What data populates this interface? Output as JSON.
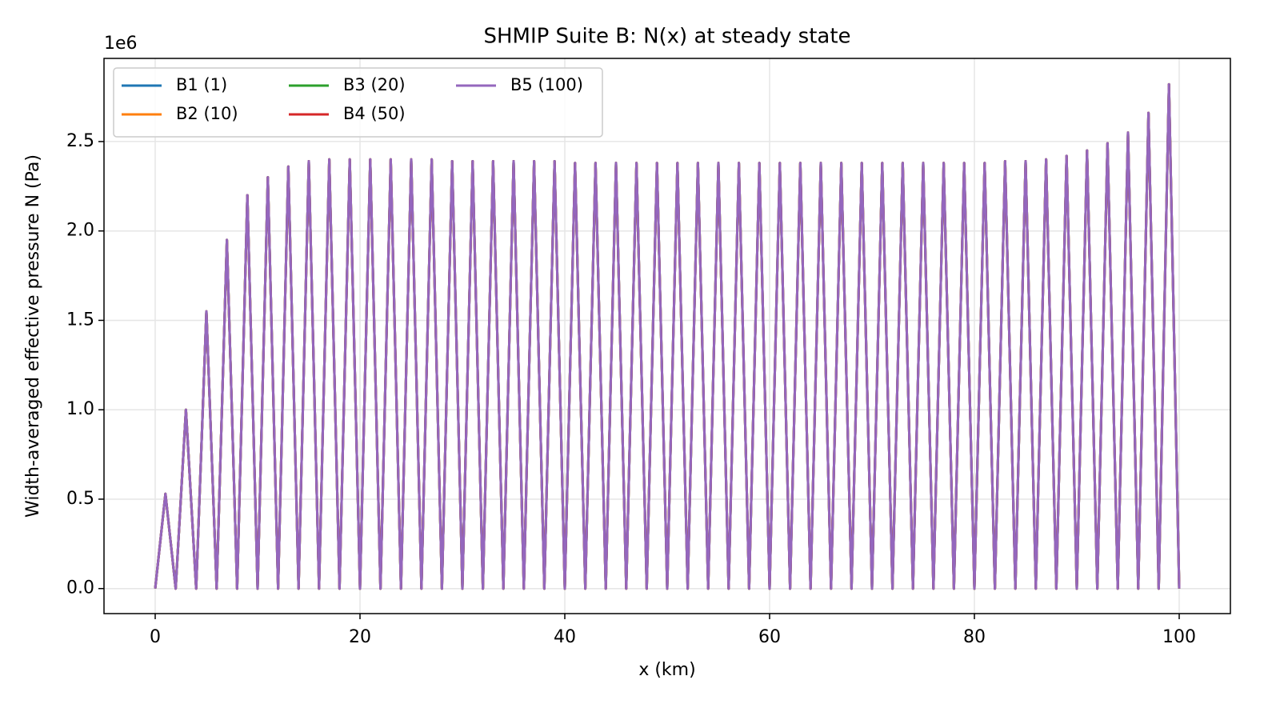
{
  "chart_data": {
    "type": "line",
    "title": "SHMIP Suite B: N(x) at steady state",
    "xlabel": "x (km)",
    "ylabel": "Width-averaged effective pressure N (Pa)",
    "y_offset_label": "1e6",
    "x": [
      0,
      1,
      2,
      3,
      4,
      5,
      6,
      7,
      8,
      9,
      10,
      11,
      12,
      13,
      14,
      15,
      16,
      17,
      18,
      19,
      20,
      21,
      22,
      23,
      24,
      25,
      26,
      27,
      28,
      29,
      30,
      31,
      32,
      33,
      34,
      35,
      36,
      37,
      38,
      39,
      40,
      41,
      42,
      43,
      44,
      45,
      46,
      47,
      48,
      49,
      50,
      51,
      52,
      53,
      54,
      55,
      56,
      57,
      58,
      59,
      60,
      61,
      62,
      63,
      64,
      65,
      66,
      67,
      68,
      69,
      70,
      71,
      72,
      73,
      74,
      75,
      76,
      77,
      78,
      79,
      80,
      81,
      82,
      83,
      84,
      85,
      86,
      87,
      88,
      89,
      90,
      91,
      92,
      93,
      94,
      95,
      96,
      97,
      98,
      99,
      100
    ],
    "series": [
      {
        "name": "B1 (1)",
        "color": "#1f77b4",
        "values": [
          0,
          0.53,
          0,
          1,
          0,
          1.55,
          0,
          1.95,
          0,
          2.2,
          0,
          2.3,
          0,
          2.36,
          0,
          2.39,
          0,
          2.4,
          0,
          2.4,
          0,
          2.4,
          0,
          2.4,
          0,
          2.4,
          0,
          2.4,
          0,
          2.39,
          0,
          2.39,
          0,
          2.39,
          0,
          2.39,
          0,
          2.39,
          0,
          2.39,
          0,
          2.38,
          0,
          2.38,
          0,
          2.38,
          0,
          2.38,
          0,
          2.38,
          0,
          2.38,
          0,
          2.38,
          0,
          2.38,
          0,
          2.38,
          0,
          2.38,
          0,
          2.38,
          0,
          2.38,
          0,
          2.38,
          0,
          2.38,
          0,
          2.38,
          0,
          2.38,
          0,
          2.38,
          0,
          2.38,
          0,
          2.38,
          0,
          2.38,
          0,
          2.38,
          0,
          2.39,
          0,
          2.39,
          0,
          2.4,
          0,
          2.42,
          0,
          2.45,
          0,
          2.49,
          0,
          2.55,
          0,
          2.66,
          0,
          2.82,
          0
        ]
      },
      {
        "name": "B2 (10)",
        "color": "#ff7f0e",
        "values": [
          0,
          0.53,
          0,
          1,
          0,
          1.55,
          0,
          1.95,
          0,
          2.2,
          0,
          2.3,
          0,
          2.36,
          0,
          2.39,
          0,
          2.4,
          0,
          2.4,
          0,
          2.4,
          0,
          2.4,
          0,
          2.4,
          0,
          2.4,
          0,
          2.39,
          0,
          2.39,
          0,
          2.39,
          0,
          2.39,
          0,
          2.39,
          0,
          2.39,
          0,
          2.38,
          0,
          2.38,
          0,
          2.38,
          0,
          2.38,
          0,
          2.38,
          0,
          2.38,
          0,
          2.38,
          0,
          2.38,
          0,
          2.38,
          0,
          2.38,
          0,
          2.38,
          0,
          2.38,
          0,
          2.38,
          0,
          2.38,
          0,
          2.38,
          0,
          2.38,
          0,
          2.38,
          0,
          2.38,
          0,
          2.38,
          0,
          2.38,
          0,
          2.38,
          0,
          2.39,
          0,
          2.39,
          0,
          2.4,
          0,
          2.42,
          0,
          2.45,
          0,
          2.49,
          0,
          2.55,
          0,
          2.66,
          0,
          2.82,
          0
        ]
      },
      {
        "name": "B3 (20)",
        "color": "#2ca02c",
        "values": [
          0,
          0.53,
          0,
          1,
          0,
          1.55,
          0,
          1.95,
          0,
          2.2,
          0,
          2.3,
          0,
          2.36,
          0,
          2.39,
          0,
          2.4,
          0,
          2.4,
          0,
          2.4,
          0,
          2.4,
          0,
          2.4,
          0,
          2.4,
          0,
          2.39,
          0,
          2.39,
          0,
          2.39,
          0,
          2.39,
          0,
          2.39,
          0,
          2.39,
          0,
          2.38,
          0,
          2.38,
          0,
          2.38,
          0,
          2.38,
          0,
          2.38,
          0,
          2.38,
          0,
          2.38,
          0,
          2.38,
          0,
          2.38,
          0,
          2.38,
          0,
          2.38,
          0,
          2.38,
          0,
          2.38,
          0,
          2.38,
          0,
          2.38,
          0,
          2.38,
          0,
          2.38,
          0,
          2.38,
          0,
          2.38,
          0,
          2.38,
          0,
          2.38,
          0,
          2.39,
          0,
          2.39,
          0,
          2.4,
          0,
          2.42,
          0,
          2.45,
          0,
          2.49,
          0,
          2.55,
          0,
          2.66,
          0,
          2.82,
          0
        ]
      },
      {
        "name": "B4 (50)",
        "color": "#d62728",
        "values": [
          0,
          0.53,
          0,
          1,
          0,
          1.55,
          0,
          1.95,
          0,
          2.2,
          0,
          2.3,
          0,
          2.36,
          0,
          2.39,
          0,
          2.4,
          0,
          2.4,
          0,
          2.4,
          0,
          2.4,
          0,
          2.4,
          0,
          2.4,
          0,
          2.39,
          0,
          2.39,
          0,
          2.39,
          0,
          2.39,
          0,
          2.39,
          0,
          2.39,
          0,
          2.38,
          0,
          2.38,
          0,
          2.38,
          0,
          2.38,
          0,
          2.38,
          0,
          2.38,
          0,
          2.38,
          0,
          2.38,
          0,
          2.38,
          0,
          2.38,
          0,
          2.38,
          0,
          2.38,
          0,
          2.38,
          0,
          2.38,
          0,
          2.38,
          0,
          2.38,
          0,
          2.38,
          0,
          2.38,
          0,
          2.38,
          0,
          2.38,
          0,
          2.38,
          0,
          2.39,
          0,
          2.39,
          0,
          2.4,
          0,
          2.42,
          0,
          2.45,
          0,
          2.49,
          0,
          2.55,
          0,
          2.66,
          0,
          2.82,
          0
        ]
      },
      {
        "name": "B5 (100)",
        "color": "#9467bd",
        "values": [
          0,
          0.53,
          0,
          1,
          0,
          1.55,
          0,
          1.95,
          0,
          2.2,
          0,
          2.3,
          0,
          2.36,
          0,
          2.39,
          0,
          2.4,
          0,
          2.4,
          0,
          2.4,
          0,
          2.4,
          0,
          2.4,
          0,
          2.4,
          0,
          2.39,
          0,
          2.39,
          0,
          2.39,
          0,
          2.39,
          0,
          2.39,
          0,
          2.39,
          0,
          2.38,
          0,
          2.38,
          0,
          2.38,
          0,
          2.38,
          0,
          2.38,
          0,
          2.38,
          0,
          2.38,
          0,
          2.38,
          0,
          2.38,
          0,
          2.38,
          0,
          2.38,
          0,
          2.38,
          0,
          2.38,
          0,
          2.38,
          0,
          2.38,
          0,
          2.38,
          0,
          2.38,
          0,
          2.38,
          0,
          2.38,
          0,
          2.38,
          0,
          2.38,
          0,
          2.39,
          0,
          2.39,
          0,
          2.4,
          0,
          2.42,
          0,
          2.45,
          0,
          2.49,
          0,
          2.55,
          0,
          2.66,
          0,
          2.82,
          0
        ]
      }
    ],
    "xlim": [
      -5,
      105
    ],
    "ylim": [
      -0.14,
      2.965
    ],
    "xticks": [
      0,
      20,
      40,
      60,
      80,
      100
    ],
    "yticks": [
      {
        "value": 0,
        "label": "0.0"
      },
      {
        "value": 0.5,
        "label": "0.5"
      },
      {
        "value": 1,
        "label": "1.0"
      },
      {
        "value": 1.5,
        "label": "1.5"
      },
      {
        "value": 2,
        "label": "2.0"
      },
      {
        "value": 2.5,
        "label": "2.5"
      }
    ],
    "grid": true,
    "legend_loc": "upper left",
    "legend_ncol": 3
  }
}
